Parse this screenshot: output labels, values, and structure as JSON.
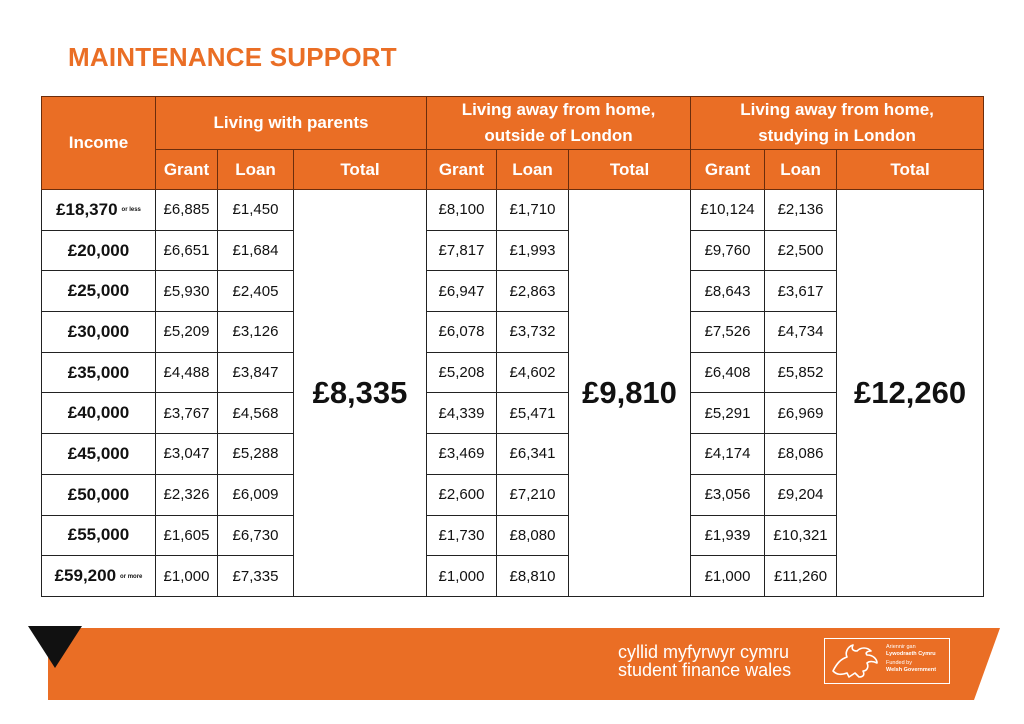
{
  "title": "MAINTENANCE SUPPORT",
  "headers": {
    "income": "Income",
    "group1": "Living with parents",
    "group2_line1": "Living away from home,",
    "group2_line2": "outside of London",
    "group3_line1": "Living away from home,",
    "group3_line2": "studying in London",
    "grant": "Grant",
    "loan": "Loan",
    "total": "Total"
  },
  "totals": {
    "parents": "£8,335",
    "outside_london": "£9,810",
    "london": "£12,260"
  },
  "rows": [
    {
      "income": "£18,370",
      "note": "or less",
      "pg": "£6,885",
      "pl": "£1,450",
      "og": "£8,100",
      "ol": "£1,710",
      "lg": "£10,124",
      "ll": "£2,136"
    },
    {
      "income": "£20,000",
      "note": "",
      "pg": "£6,651",
      "pl": "£1,684",
      "og": "£7,817",
      "ol": "£1,993",
      "lg": "£9,760",
      "ll": "£2,500"
    },
    {
      "income": "£25,000",
      "note": "",
      "pg": "£5,930",
      "pl": "£2,405",
      "og": "£6,947",
      "ol": "£2,863",
      "lg": "£8,643",
      "ll": "£3,617"
    },
    {
      "income": "£30,000",
      "note": "",
      "pg": "£5,209",
      "pl": "£3,126",
      "og": "£6,078",
      "ol": "£3,732",
      "lg": "£7,526",
      "ll": "£4,734"
    },
    {
      "income": "£35,000",
      "note": "",
      "pg": "£4,488",
      "pl": "£3,847",
      "og": "£5,208",
      "ol": "£4,602",
      "lg": "£6,408",
      "ll": "£5,852"
    },
    {
      "income": "£40,000",
      "note": "",
      "pg": "£3,767",
      "pl": "£4,568",
      "og": "£4,339",
      "ol": "£5,471",
      "lg": "£5,291",
      "ll": "£6,969"
    },
    {
      "income": "£45,000",
      "note": "",
      "pg": "£3,047",
      "pl": "£5,288",
      "og": "£3,469",
      "ol": "£6,341",
      "lg": "£4,174",
      "ll": "£8,086"
    },
    {
      "income": "£50,000",
      "note": "",
      "pg": "£2,326",
      "pl": "£6,009",
      "og": "£2,600",
      "ol": "£7,210",
      "lg": "£3,056",
      "ll": "£9,204"
    },
    {
      "income": "£55,000",
      "note": "",
      "pg": "£1,605",
      "pl": "£6,730",
      "og": "£1,730",
      "ol": "£8,080",
      "lg": "£1,939",
      "ll": "£10,321"
    },
    {
      "income": "£59,200",
      "note": "or more",
      "pg": "£1,000",
      "pl": "£7,335",
      "og": "£1,000",
      "ol": "£8,810",
      "lg": "£1,000",
      "ll": "£11,260"
    }
  ],
  "footer": {
    "brand_welsh": "cyllid myfyrwyr cymru",
    "brand_english": "student finance wales",
    "gov_line1": "Ariennir gan",
    "gov_line2": "Lywodraeth Cymru",
    "gov_line3": "Funded by",
    "gov_line4": "Welsh Government",
    "colors": {
      "orange": "#ea6e25",
      "dark": "#111111"
    }
  }
}
